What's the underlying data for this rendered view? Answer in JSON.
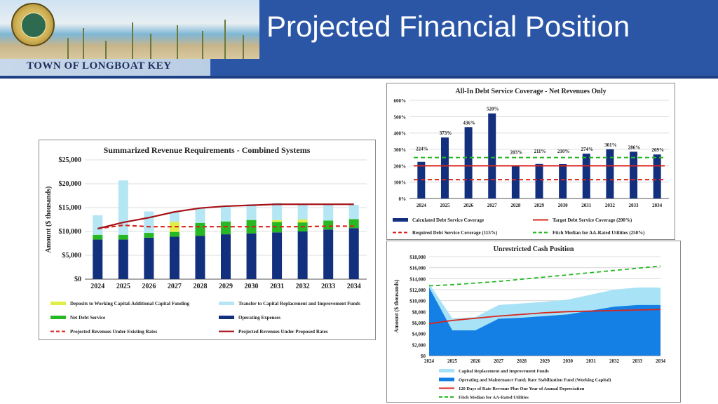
{
  "header": {
    "title": "Projected Financial Position",
    "town_label": "TOWN OF LONGBOAT KEY"
  },
  "chart_data": [
    {
      "id": "revenue",
      "type": "bar",
      "title": "Summarized Revenue Requirements - Combined Systems",
      "xlabel": "",
      "ylabel": "Amount ($ thousands)",
      "ylim": [
        0,
        25000
      ],
      "yticks": [
        "$0",
        "$5,000",
        "$10,000",
        "$15,000",
        "$20,000",
        "$25,000"
      ],
      "categories": [
        "2024",
        "2025",
        "2026",
        "2027",
        "2028",
        "2029",
        "2030",
        "2031",
        "2032",
        "2033",
        "2034"
      ],
      "stacked_series": [
        {
          "name": "Operating Expenses",
          "color": "#13307e",
          "values": [
            8300,
            8300,
            8700,
            8900,
            9100,
            9400,
            9600,
            9800,
            10000,
            10400,
            10700
          ]
        },
        {
          "name": "Net Debt Service",
          "color": "#27b824",
          "values": [
            1000,
            1000,
            1000,
            1000,
            2700,
            2700,
            2800,
            2200,
            1900,
            1900,
            1900
          ]
        },
        {
          "name": "Deposits to Working Capital-Additional Capital Funding",
          "color": "#e2ee45",
          "values": [
            0,
            0,
            0,
            2100,
            0,
            0,
            0,
            400,
            600,
            0,
            0
          ]
        },
        {
          "name": "Transfer to Capital Replacement and Improvement Funds",
          "color": "#b5e6f4",
          "values": [
            4100,
            11400,
            4500,
            2200,
            3000,
            3300,
            3300,
            3600,
            3300,
            3400,
            3000
          ]
        }
      ],
      "line_series": [
        {
          "name": "Projected Revenues Under Existing Rates",
          "color": "#d9251d",
          "dashed": true,
          "values": [
            10600,
            11300,
            11000,
            11000,
            11000,
            11000,
            11000,
            11000,
            11000,
            11100,
            11100
          ]
        },
        {
          "name": "Projected Revenues Under Proposed Rates",
          "color": "#a51218",
          "dashed": false,
          "values": [
            10600,
            11900,
            12900,
            14100,
            14900,
            15300,
            15500,
            15700,
            15700,
            15700,
            15700
          ]
        }
      ],
      "legend": [
        {
          "label": "Deposits to Working Capital-Additional Capital Funding",
          "kind": "swatch",
          "color": "#e2ee45"
        },
        {
          "label": "Transfer to Capital Replacement and Improvement Funds",
          "kind": "swatch",
          "color": "#b5e6f4"
        },
        {
          "label": "Net Debt Service",
          "kind": "swatch",
          "color": "#27b824"
        },
        {
          "label": "Operating Expenses",
          "kind": "swatch",
          "color": "#13307e"
        },
        {
          "label": "Projected Revenues Under Existing Rates",
          "kind": "dash",
          "color": "#d9251d"
        },
        {
          "label": "Projected Revenues Under Proposed Rates",
          "kind": "line",
          "color": "#a51218"
        }
      ]
    },
    {
      "id": "coverage",
      "type": "bar",
      "title": "All-In Debt Service Coverage - Net Revenues Only",
      "xlabel": "",
      "ylabel": "",
      "ylim": [
        0,
        600
      ],
      "yticks": [
        "0%",
        "100%",
        "200%",
        "300%",
        "400%",
        "500%",
        "600%"
      ],
      "categories": [
        "2024",
        "2025",
        "2026",
        "2027",
        "2028",
        "2029",
        "2030",
        "2031",
        "2032",
        "2033",
        "2034"
      ],
      "series": [
        {
          "name": "Calculated Debt Service Coverage",
          "color": "#13307e",
          "values": [
            224,
            373,
            436,
            520,
            203,
            211,
            210,
            274,
            301,
            286,
            269
          ],
          "labels": [
            "224%",
            "373%",
            "436%",
            "520%",
            "203%",
            "211%",
            "210%",
            "274%",
            "301%",
            "286%",
            "269%"
          ]
        }
      ],
      "reference_lines": [
        {
          "name": "Target Debt Service Coverage (200%)",
          "value": 200,
          "color": "#d9251d",
          "dashed": false
        },
        {
          "name": "Required Debt Service Coverage (115%)",
          "value": 115,
          "color": "#d9251d",
          "dashed": true
        },
        {
          "name": "Fitch Median for AA-Rated Utilities (250%)",
          "value": 250,
          "color": "#27b824",
          "dashed": true
        }
      ],
      "legend": [
        {
          "label": "Calculated Debt Service Coverage",
          "kind": "swatch",
          "color": "#13307e"
        },
        {
          "label": "Target Debt Service Coverage (200%)",
          "kind": "line",
          "color": "#d9251d"
        },
        {
          "label": "Required Debt Service Coverage (115%)",
          "kind": "dash",
          "color": "#d9251d"
        },
        {
          "label": "Fitch Median for AA-Rated Utilities (250%)",
          "kind": "dash",
          "color": "#27b824"
        }
      ]
    },
    {
      "id": "cash",
      "type": "area",
      "title": "Unrestricted Cash Position",
      "xlabel": "",
      "ylabel": "Amount ($ thousands)",
      "ylim": [
        0,
        18000
      ],
      "yticks": [
        "$0",
        "$2,000",
        "$4,000",
        "$6,000",
        "$8,000",
        "$10,000",
        "$12,000",
        "$14,000",
        "$16,000",
        "$18,000"
      ],
      "categories": [
        "2024",
        "2025",
        "2026",
        "2027",
        "2028",
        "2029",
        "2030",
        "2031",
        "2032",
        "2033",
        "2034"
      ],
      "area_series": [
        {
          "name": "Operating and Maintenance Fund; Rate Stabilization Fund (Working Capital)",
          "color": "#1480e6",
          "values": [
            12400,
            4600,
            4600,
            6700,
            6900,
            7200,
            7500,
            8200,
            8900,
            9200,
            9200
          ]
        },
        {
          "name": "Capital Replacement and Improvement Funds",
          "color": "#a8e2f6",
          "values": [
            13100,
            6800,
            7000,
            9200,
            9500,
            9800,
            10200,
            11100,
            12000,
            12400,
            12400
          ]
        }
      ],
      "line_series": [
        {
          "name": "120 Days of Rate Revenue Plus One Year of Annual Depreciation",
          "color": "#d9251d",
          "dashed": false,
          "values": [
            5800,
            6400,
            6800,
            7200,
            7500,
            7800,
            8000,
            8100,
            8200,
            8300,
            8400
          ]
        },
        {
          "name": "Fitch Median for AA-Rated Utilities",
          "color": "#27b824",
          "dashed": true,
          "values": [
            12700,
            12900,
            13200,
            13500,
            13900,
            14300,
            14700,
            15100,
            15500,
            15900,
            16300
          ]
        }
      ],
      "legend": [
        {
          "label": "Capital Replacement and Improvement Funds",
          "kind": "swatch",
          "color": "#a8e2f6"
        },
        {
          "label": "Operating and Maintenance Fund; Rate Stabilization Fund (Working Capital)",
          "kind": "swatch",
          "color": "#1480e6"
        },
        {
          "label": "120 Days of Rate Revenue Plus One Year of Annual Depreciation",
          "kind": "line",
          "color": "#d9251d"
        },
        {
          "label": "Fitch Median for AA-Rated Utilities",
          "kind": "dash",
          "color": "#27b824"
        }
      ]
    }
  ]
}
